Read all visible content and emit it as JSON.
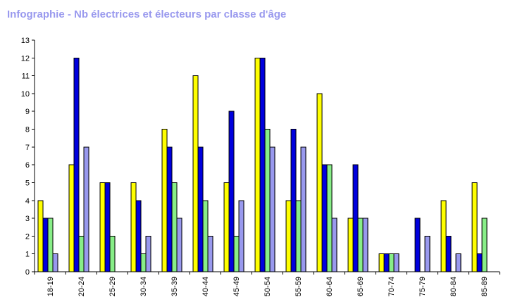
{
  "chart_data": {
    "type": "bar",
    "title": "Infographie - Nb électrices et électeurs par classe d'âge",
    "xlabel": "",
    "ylabel": "",
    "ylim": [
      0,
      13
    ],
    "yticks": [
      0,
      1,
      2,
      3,
      4,
      5,
      6,
      7,
      8,
      9,
      10,
      11,
      12,
      13
    ],
    "grid": false,
    "categories": [
      "18-19",
      "20-24",
      "25-29",
      "30-34",
      "35-39",
      "40-44",
      "45-49",
      "50-54",
      "55-59",
      "60-64",
      "65-69",
      "70-74",
      "75-79",
      "80-84",
      "85-89"
    ],
    "series": [
      {
        "color": "#ffff00",
        "values": [
          4,
          6,
          5,
          5,
          8,
          11,
          5,
          12,
          4,
          10,
          3,
          1,
          0,
          4,
          5
        ]
      },
      {
        "color": "#0000dd",
        "values": [
          3,
          12,
          5,
          4,
          7,
          7,
          9,
          12,
          8,
          6,
          6,
          1,
          3,
          2,
          1
        ]
      },
      {
        "color": "#88ee88",
        "values": [
          3,
          2,
          2,
          1,
          5,
          4,
          2,
          8,
          4,
          6,
          3,
          1,
          0,
          0,
          3
        ]
      },
      {
        "color": "#9999ee",
        "values": [
          1,
          7,
          0,
          2,
          3,
          2,
          4,
          7,
          7,
          3,
          3,
          1,
          2,
          1,
          0
        ]
      }
    ]
  }
}
